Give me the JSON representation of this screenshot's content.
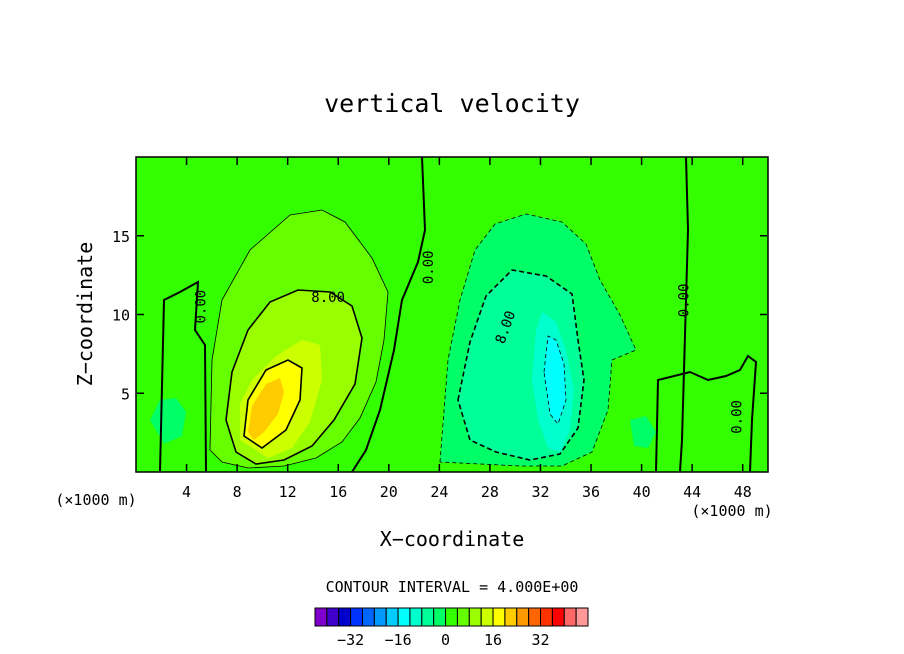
{
  "chart_data": {
    "type": "heatmap",
    "title": "vertical velocity",
    "xlabel": "X−coordinate",
    "ylabel": "Z−coordinate",
    "x_unit_left": "(×1000 m)",
    "x_unit_right": "(×1000 m)",
    "xlim": [
      0,
      50
    ],
    "ylim": [
      0,
      20
    ],
    "x_ticks": [
      "4",
      "8",
      "12",
      "16",
      "20",
      "24",
      "28",
      "32",
      "36",
      "40",
      "44",
      "48"
    ],
    "y_ticks": [
      "5",
      "10",
      "15"
    ],
    "grid": false,
    "contour_interval": "CONTOUR INTERVAL = 4.000E+00",
    "contour_labels": [
      {
        "text": "0.00",
        "x": 5.1,
        "y": 10.5,
        "rotation": -90
      },
      {
        "text": "8.00",
        "x": 15.2,
        "y": 11.1,
        "rotation": 0
      },
      {
        "text": "0.00",
        "x": 23.1,
        "y": 13.0,
        "rotation": -90
      },
      {
        "text": "8.00",
        "x": 29.2,
        "y": 9.2,
        "rotation": -70
      },
      {
        "text": "0.00",
        "x": 43.3,
        "y": 10.9,
        "rotation": -90
      },
      {
        "text": "0.00",
        "x": 47.5,
        "y": 3.5,
        "rotation": -90
      }
    ],
    "features": [
      {
        "name": "updraft",
        "x": 11.5,
        "y": 5.0,
        "peak": 20
      },
      {
        "name": "downdraft",
        "x": 33.0,
        "y": 7.0,
        "peak": -12
      }
    ],
    "colorbar": {
      "tick_labels": [
        "−32",
        "−16",
        "0",
        "16",
        "32"
      ],
      "tick_values": [
        -32,
        -16,
        0,
        16,
        32
      ],
      "levels": [
        -40,
        -36,
        -32,
        -28,
        -24,
        -20,
        -16,
        -12,
        -8,
        -4,
        0,
        4,
        8,
        12,
        16,
        20,
        24,
        28,
        32,
        36,
        40
      ],
      "colors": [
        "#7f00cc",
        "#3f00cc",
        "#0000cc",
        "#0033ff",
        "#0066ff",
        "#0099ff",
        "#00ccff",
        "#00ffff",
        "#00ffcc",
        "#00ff99",
        "#00ff66",
        "#33ff00",
        "#66ff00",
        "#99ff00",
        "#ccff00",
        "#ffff00",
        "#ffcc00",
        "#ff9900",
        "#ff6600",
        "#ff3300",
        "#ff0000",
        "#ff6666",
        "#ff9999"
      ]
    }
  }
}
